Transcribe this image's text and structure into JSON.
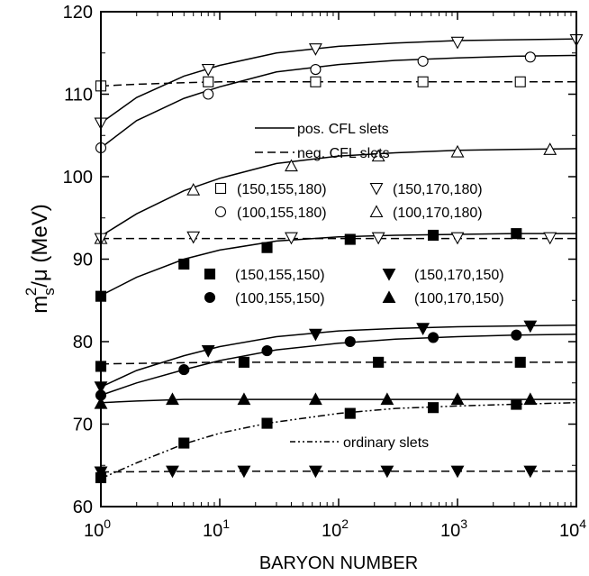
{
  "chart_data": {
    "type": "line",
    "xlabel": "BARYON NUMBER",
    "ylabel": {
      "base": "m",
      "sub": "s",
      "sup": "2",
      "rest": "/μ (MeV)"
    },
    "xscale": "log",
    "xlim": [
      1,
      10000
    ],
    "ylim": [
      60,
      120
    ],
    "x_ticks": [
      {
        "base": "10",
        "exp": "0"
      },
      {
        "base": "10",
        "exp": "1"
      },
      {
        "base": "10",
        "exp": "2"
      },
      {
        "base": "10",
        "exp": "3"
      },
      {
        "base": "10",
        "exp": "4"
      }
    ],
    "y_ticks": [
      "60",
      "70",
      "80",
      "90",
      "100",
      "110",
      "120"
    ],
    "grid": false,
    "legends": {
      "lines": [
        {
          "label": "pos. CFL slets",
          "style": "solid"
        },
        {
          "label": "neg. CFL slets",
          "style": "dashed"
        },
        {
          "label": "ordinary slets",
          "style": "dashdotdot"
        }
      ],
      "open_markers": [
        {
          "marker": "square-open",
          "label": "(150,155,180)"
        },
        {
          "marker": "tri-down-open",
          "label": "(150,170,180)"
        },
        {
          "marker": "circle-open",
          "label": "(100,155,180)"
        },
        {
          "marker": "tri-up-open",
          "label": "(100,170,180)"
        }
      ],
      "filled_markers": [
        {
          "marker": "square-filled",
          "label": "(150,155,150)"
        },
        {
          "marker": "tri-down-filled",
          "label": "(150,170,150)"
        },
        {
          "marker": "circle-filled",
          "label": "(100,155,150)"
        },
        {
          "marker": "tri-up-filled",
          "label": "(100,170,150)"
        }
      ]
    },
    "series": [
      {
        "marker": "tri-down-open",
        "style": "solid",
        "x": [
          1,
          2,
          5,
          10,
          30,
          100,
          300,
          1000,
          3000,
          10000
        ],
        "y": [
          106.5,
          109.6,
          112.2,
          113.5,
          115.0,
          115.8,
          116.2,
          116.5,
          116.6,
          116.7
        ],
        "points": [
          [
            1,
            106.5
          ],
          [
            8,
            113.0
          ],
          [
            64,
            115.5
          ],
          [
            1000,
            116.3
          ],
          [
            10000,
            116.6
          ]
        ]
      },
      {
        "marker": "circle-open",
        "style": "solid",
        "x": [
          1,
          2,
          5,
          10,
          30,
          100,
          300,
          1000,
          3000,
          10000
        ],
        "y": [
          103.5,
          106.8,
          109.5,
          110.9,
          112.7,
          113.6,
          114.1,
          114.4,
          114.6,
          114.7
        ],
        "points": [
          [
            1,
            103.5
          ],
          [
            8,
            110.0
          ],
          [
            64,
            113.0
          ],
          [
            512,
            114.0
          ],
          [
            4096,
            114.5
          ]
        ]
      },
      {
        "marker": "square-open",
        "style": "dashed",
        "x": [
          1,
          2,
          5,
          10,
          30,
          100,
          1000,
          10000
        ],
        "y": [
          111.0,
          111.2,
          111.4,
          111.5,
          111.5,
          111.5,
          111.5,
          111.5
        ],
        "points": [
          [
            1,
            111.0
          ],
          [
            8,
            111.5
          ],
          [
            64,
            111.5
          ],
          [
            512,
            111.5
          ],
          [
            3375,
            111.5
          ]
        ]
      },
      {
        "marker": "tri-up-open",
        "style": "solid",
        "x": [
          1,
          2,
          5,
          10,
          30,
          100,
          300,
          1000,
          3000,
          10000
        ],
        "y": [
          92.8,
          95.5,
          98.3,
          99.8,
          101.6,
          102.5,
          102.9,
          103.2,
          103.3,
          103.4
        ],
        "points": [
          [
            1,
            92.5
          ],
          [
            6,
            98.4
          ],
          [
            40,
            101.3
          ],
          [
            216,
            102.5
          ],
          [
            1000,
            103.0
          ],
          [
            6000,
            103.3
          ]
        ]
      },
      {
        "marker": "tri-down-open",
        "style": "dashed",
        "x": [
          1,
          10,
          100,
          1000,
          10000
        ],
        "y": [
          92.5,
          92.5,
          92.5,
          92.5,
          92.5
        ],
        "points": [
          [
            1,
            92.5
          ],
          [
            6,
            92.7
          ],
          [
            40,
            92.6
          ],
          [
            216,
            92.6
          ],
          [
            1000,
            92.6
          ],
          [
            6000,
            92.6
          ]
        ]
      },
      {
        "marker": "square-filled",
        "style": "solid",
        "x": [
          1,
          2,
          5,
          10,
          30,
          100,
          300,
          1000,
          3000,
          10000
        ],
        "y": [
          85.6,
          87.8,
          90.0,
          91.1,
          92.2,
          92.7,
          92.9,
          93.0,
          93.1,
          93.1
        ],
        "points": [
          [
            1,
            85.5
          ],
          [
            5,
            89.4
          ],
          [
            25,
            91.4
          ],
          [
            125,
            92.4
          ],
          [
            625,
            92.9
          ],
          [
            3125,
            93.1
          ]
        ]
      },
      {
        "marker": "tri-down-filled",
        "style": "solid",
        "x": [
          1,
          2,
          5,
          10,
          30,
          100,
          300,
          1000,
          3000,
          10000
        ],
        "y": [
          74.5,
          76.5,
          78.3,
          79.4,
          80.6,
          81.3,
          81.6,
          81.8,
          81.9,
          82.0
        ],
        "points": [
          [
            1,
            74.5
          ],
          [
            8,
            78.9
          ],
          [
            64,
            80.9
          ],
          [
            512,
            81.6
          ],
          [
            4096,
            81.9
          ]
        ]
      },
      {
        "marker": "circle-filled",
        "style": "solid",
        "x": [
          1,
          2,
          5,
          10,
          30,
          100,
          300,
          1000,
          3000,
          10000
        ],
        "y": [
          73.5,
          75.0,
          76.6,
          77.7,
          79.0,
          79.8,
          80.3,
          80.6,
          80.8,
          80.9
        ],
        "points": [
          [
            1,
            73.5
          ],
          [
            5,
            76.6
          ],
          [
            25,
            78.9
          ],
          [
            125,
            80.0
          ],
          [
            625,
            80.5
          ],
          [
            3125,
            80.8
          ]
        ]
      },
      {
        "marker": "square-filled",
        "style": "dashed",
        "x": [
          1,
          10,
          100,
          1000,
          10000
        ],
        "y": [
          77.3,
          77.5,
          77.5,
          77.5,
          77.5
        ],
        "points": [
          [
            1,
            77.0
          ],
          [
            16,
            77.5
          ],
          [
            216,
            77.5
          ],
          [
            3375,
            77.5
          ]
        ]
      },
      {
        "marker": "tri-up-filled",
        "style": "solid",
        "x": [
          1,
          2,
          5,
          10,
          100,
          1000,
          10000
        ],
        "y": [
          72.6,
          72.8,
          73.0,
          73.0,
          73.0,
          73.0,
          73.0
        ],
        "points": [
          [
            1,
            72.5
          ],
          [
            4,
            73.0
          ],
          [
            16,
            73.0
          ],
          [
            64,
            73.0
          ],
          [
            256,
            73.0
          ],
          [
            1000,
            73.0
          ],
          [
            4096,
            73.0
          ]
        ]
      },
      {
        "marker": "square-filled",
        "style": "dashdotdot",
        "x": [
          1,
          2,
          5,
          10,
          25,
          100,
          300,
          1000,
          3000,
          10000
        ],
        "y": [
          63.4,
          65.3,
          67.6,
          68.9,
          70.1,
          71.3,
          71.9,
          72.2,
          72.4,
          72.6
        ],
        "points": [
          [
            1,
            63.5
          ],
          [
            5,
            67.7
          ],
          [
            25,
            70.1
          ],
          [
            125,
            71.3
          ],
          [
            625,
            72.0
          ],
          [
            3125,
            72.4
          ]
        ]
      },
      {
        "marker": "tri-down-filled",
        "style": "dashed",
        "x": [
          1,
          10,
          100,
          1000,
          10000
        ],
        "y": [
          64.2,
          64.3,
          64.3,
          64.3,
          64.3
        ],
        "points": [
          [
            1,
            64.2
          ],
          [
            4,
            64.3
          ],
          [
            16,
            64.3
          ],
          [
            64,
            64.3
          ],
          [
            256,
            64.3
          ],
          [
            1000,
            64.3
          ],
          [
            4096,
            64.3
          ]
        ]
      }
    ]
  }
}
